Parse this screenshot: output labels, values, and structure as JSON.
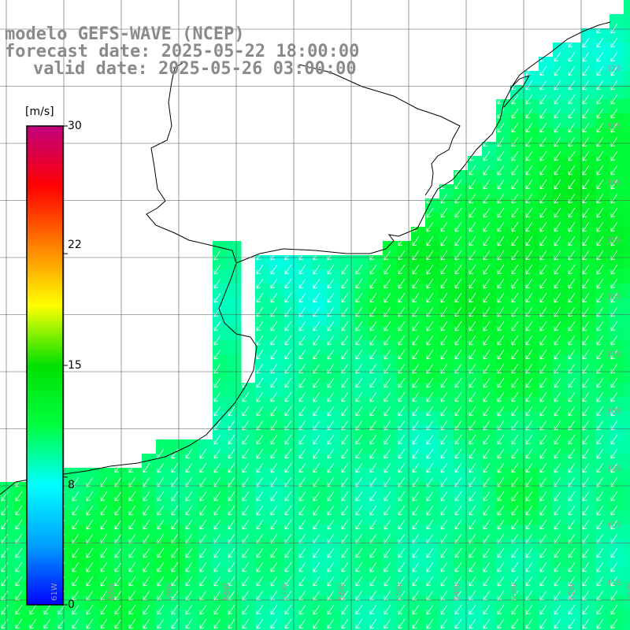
{
  "title": {
    "line1": "modelo GEFS-WAVE (NCEP)",
    "line2": "forecast date: 2025-05-22 18:00:00",
    "line3": "valid date: 2025-05-26 03:00:00"
  },
  "colorbar": {
    "unit": "[m/s]",
    "min": 0,
    "max": 30,
    "tick_labels": [
      "30",
      "22",
      "15",
      "8",
      "0"
    ],
    "tick_values": [
      30,
      22,
      15,
      8,
      0
    ],
    "colors": [
      "#0000ff",
      "#00a0ff",
      "#00ffff",
      "#00ff40",
      "#00e000",
      "#ffff00",
      "#ff8000",
      "#ff0000",
      "#c00080"
    ]
  },
  "map": {
    "lat_labels": [
      "32S",
      "33S",
      "34S",
      "35S",
      "36S",
      "37S",
      "38S",
      "39S",
      "40S",
      "41S"
    ],
    "lon_labels": [
      "62W",
      "61W",
      "60W",
      "59W",
      "58W",
      "57W",
      "56W",
      "55W",
      "54W",
      "53W",
      "52W",
      "51W"
    ],
    "wind_direction_arrows": "southwest",
    "colors": {
      "land": "#ffffff",
      "coast": "#000000",
      "grid": "#555555",
      "arrow": "#ffffff"
    }
  }
}
